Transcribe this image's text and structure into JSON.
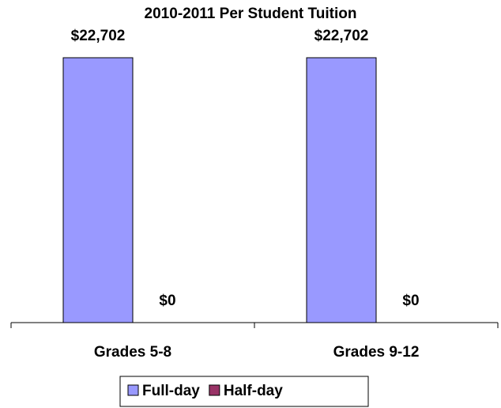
{
  "chart_data": {
    "type": "bar",
    "title": "2010-2011 Per Student Tuition",
    "categories": [
      "Grades 5-8",
      "Grades 9-12"
    ],
    "series": [
      {
        "name": "Full-day",
        "color": "#9999ff",
        "values": [
          22702,
          22702
        ],
        "value_labels": [
          "$22,702",
          "$22,702"
        ]
      },
      {
        "name": "Half-day",
        "color": "#993366",
        "values": [
          0,
          0
        ],
        "value_labels": [
          "$0",
          "$0"
        ]
      }
    ],
    "legend": "bottom"
  }
}
